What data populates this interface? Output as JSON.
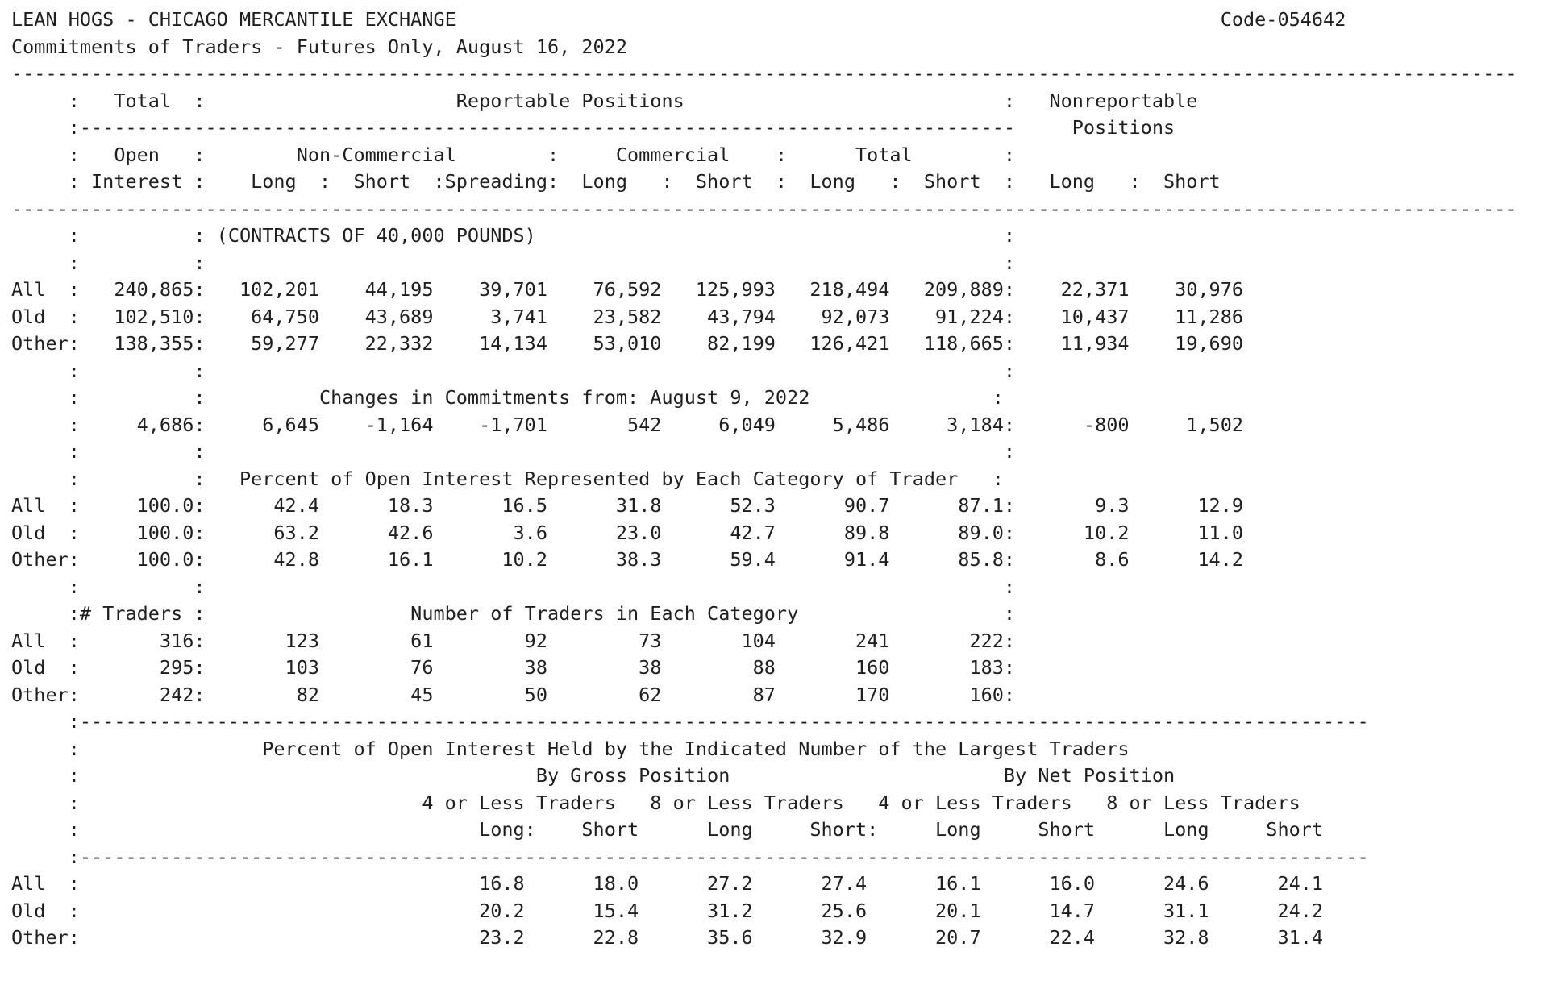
{
  "page": {
    "background": "#ffffff",
    "text_color": "#1f1f1f"
  },
  "header": {
    "market": "LEAN HOGS - CHICAGO MERCANTILE EXCHANGE",
    "code": "Code-054642",
    "report_title": "Commitments of Traders - Futures Only, August 16, 2022",
    "as_of_date": "August 16, 2022"
  },
  "table": {
    "contract_unit": "(CONTRACTS OF 40,000 POUNDS)",
    "group_headers": [
      "Total",
      "Reportable Positions",
      "Nonreportable Positions"
    ],
    "subgroup_headers": [
      "Open Interest",
      "Non-Commercial",
      "Commercial",
      "Total"
    ],
    "columns": [
      "Open Interest",
      "Non-Commercial Long",
      "Non-Commercial Short",
      "Non-Commercial Spreading",
      "Commercial Long",
      "Commercial Short",
      "Total Long",
      "Total Short",
      "Nonreportable Long",
      "Nonreportable Short"
    ],
    "commitments": {
      "All": [
        "240,865",
        "102,201",
        "44,195",
        "39,701",
        "76,592",
        "125,993",
        "218,494",
        "209,889",
        "22,371",
        "30,976"
      ],
      "Old": [
        "102,510",
        "64,750",
        "43,689",
        "3,741",
        "23,582",
        "43,794",
        "92,073",
        "91,224",
        "10,437",
        "11,286"
      ],
      "Other": [
        "138,355",
        "59,277",
        "22,332",
        "14,134",
        "53,010",
        "82,199",
        "126,421",
        "118,665",
        "11,934",
        "19,690"
      ]
    },
    "changes": {
      "heading": "Changes in Commitments from: August 9, 2022",
      "values": [
        "4,686",
        "6,645",
        "-1,164",
        "-1,701",
        "542",
        "6,049",
        "5,486",
        "3,184",
        "-800",
        "1,502"
      ]
    },
    "percent_of_open_interest": {
      "heading": "Percent of Open Interest Represented by Each Category of Trader",
      "All": [
        "100.0",
        "42.4",
        "18.3",
        "16.5",
        "31.8",
        "52.3",
        "90.7",
        "87.1",
        "9.3",
        "12.9"
      ],
      "Old": [
        "100.0",
        "63.2",
        "42.6",
        "3.6",
        "23.0",
        "42.7",
        "89.8",
        "89.0",
        "10.2",
        "11.0"
      ],
      "Other": [
        "100.0",
        "42.8",
        "16.1",
        "10.2",
        "38.3",
        "59.4",
        "91.4",
        "85.8",
        "8.6",
        "14.2"
      ]
    },
    "number_of_traders": {
      "heading": "Number of Traders in Each Category",
      "total_label": "# Traders",
      "All": [
        "316",
        "123",
        "61",
        "92",
        "73",
        "104",
        "241",
        "222"
      ],
      "Old": [
        "295",
        "103",
        "76",
        "38",
        "38",
        "88",
        "160",
        "183"
      ],
      "Other": [
        "242",
        "82",
        "45",
        "50",
        "62",
        "87",
        "170",
        "160"
      ]
    },
    "concentration": {
      "heading": "Percent of Open Interest Held by the Indicated Number of the Largest Traders",
      "groups": [
        "By Gross Position",
        "By Net Position"
      ],
      "subgroups": [
        "4 or Less Traders",
        "8 or Less Traders",
        "4 or Less Traders",
        "8 or Less Traders"
      ],
      "legs": [
        "Long",
        "Short",
        "Long",
        "Short",
        "Long",
        "Short",
        "Long",
        "Short"
      ],
      "All": [
        "16.8",
        "18.0",
        "27.2",
        "27.4",
        "16.1",
        "16.0",
        "24.6",
        "24.1"
      ],
      "Old": [
        "20.2",
        "15.4",
        "31.2",
        "25.6",
        "20.1",
        "14.7",
        "31.1",
        "24.2"
      ],
      "Other": [
        "23.2",
        "22.8",
        "35.6",
        "32.9",
        "20.7",
        "22.4",
        "32.8",
        "31.4"
      ]
    }
  },
  "report_lines": [
    {
      "name": "title-line",
      "text": "LEAN HOGS - CHICAGO MERCANTILE EXCHANGE                                                                   Code-054642"
    },
    {
      "name": "subtitle-line",
      "text": "Commitments of Traders - Futures Only, August 16, 2022"
    },
    {
      "name": "separator-line",
      "text": "------------------------------------------------------------------------------------------------------------------------------------"
    },
    {
      "name": "header-group-line",
      "text": "     :   Total  :                      Reportable Positions                            :   Nonreportable"
    },
    {
      "name": "header-group-line2",
      "text": "     :----------------------------------------------------------------------------------     Positions"
    },
    {
      "name": "header-category-line",
      "text": "     :   Open   :        Non-Commercial        :     Commercial    :      Total        :"
    },
    {
      "name": "header-columns-line",
      "text": "     : Interest :    Long  :  Short  :Spreading:  Long   :  Short  :  Long   :  Short  :   Long   :  Short"
    },
    {
      "name": "separator-line",
      "text": "------------------------------------------------------------------------------------------------------------------------------------"
    },
    {
      "name": "unit-note-line",
      "text": "     :          : (CONTRACTS OF 40,000 POUNDS)                                         :"
    },
    {
      "name": "spacer-line",
      "text": "     :          :                                                                      :"
    },
    {
      "name": "row-all-commitments",
      "text": "All  :   240,865:   102,201    44,195    39,701    76,592   125,993   218,494   209,889:    22,371    30,976"
    },
    {
      "name": "row-old-commitments",
      "text": "Old  :   102,510:    64,750    43,689     3,741    23,582    43,794    92,073    91,224:    10,437    11,286"
    },
    {
      "name": "row-other-commitments",
      "text": "Other:   138,355:    59,277    22,332    14,134    53,010    82,199   126,421   118,665:    11,934    19,690"
    },
    {
      "name": "spacer-line",
      "text": "     :          :                                                                      :"
    },
    {
      "name": "changes-heading-line",
      "text": "     :          :          Changes in Commitments from: August 9, 2022                :"
    },
    {
      "name": "row-changes-values",
      "text": "     :     4,686:     6,645    -1,164    -1,701       542     6,049     5,486     3,184:      -800     1,502"
    },
    {
      "name": "spacer-line",
      "text": "     :          :                                                                      :"
    },
    {
      "name": "percent-heading-line",
      "text": "     :          :   Percent of Open Interest Represented by Each Category of Trader   :"
    },
    {
      "name": "row-all-percent",
      "text": "All  :     100.0:      42.4      18.3      16.5      31.8      52.3      90.7      87.1:       9.3      12.9"
    },
    {
      "name": "row-old-percent",
      "text": "Old  :     100.0:      63.2      42.6       3.6      23.0      42.7      89.8      89.0:      10.2      11.0"
    },
    {
      "name": "row-other-percent",
      "text": "Other:     100.0:      42.8      16.1      10.2      38.3      59.4      91.4      85.8:       8.6      14.2"
    },
    {
      "name": "spacer-line",
      "text": "     :          :                                                                      :"
    },
    {
      "name": "traders-heading-line",
      "text": "     :# Traders :                  Number of Traders in Each Category                  :"
    },
    {
      "name": "row-all-traders",
      "text": "All  :       316:       123        61        92        73       104       241       222:"
    },
    {
      "name": "row-old-traders",
      "text": "Old  :       295:       103        76        38        38        88       160       183:"
    },
    {
      "name": "row-other-traders",
      "text": "Other:       242:        82        45        50        62        87       170       160:"
    },
    {
      "name": "separator-line-inner",
      "text": "     :-----------------------------------------------------------------------------------------------------------------"
    },
    {
      "name": "concentration-heading-line",
      "text": "     :                Percent of Open Interest Held by the Indicated Number of the Largest Traders"
    },
    {
      "name": "concentration-groups-line",
      "text": "     :                                        By Gross Position                        By Net Position"
    },
    {
      "name": "concentration-subgroup-line",
      "text": "     :                              4 or Less Traders   8 or Less Traders   4 or Less Traders   8 or Less Traders"
    },
    {
      "name": "concentration-columns-line",
      "text": "     :                                   Long:    Short      Long     Short:     Long     Short      Long     Short"
    },
    {
      "name": "separator-line-inner",
      "text": "     :-----------------------------------------------------------------------------------------------------------------"
    },
    {
      "name": "row-all-concentration",
      "text": "All  :                                   16.8      18.0      27.2      27.4      16.1      16.0      24.6      24.1"
    },
    {
      "name": "row-old-concentration",
      "text": "Old  :                                   20.2      15.4      31.2      25.6      20.1      14.7      31.1      24.2"
    },
    {
      "name": "row-other-concentration",
      "text": "Other:                                   23.2      22.8      35.6      32.9      20.7      22.4      32.8      31.4"
    }
  ]
}
